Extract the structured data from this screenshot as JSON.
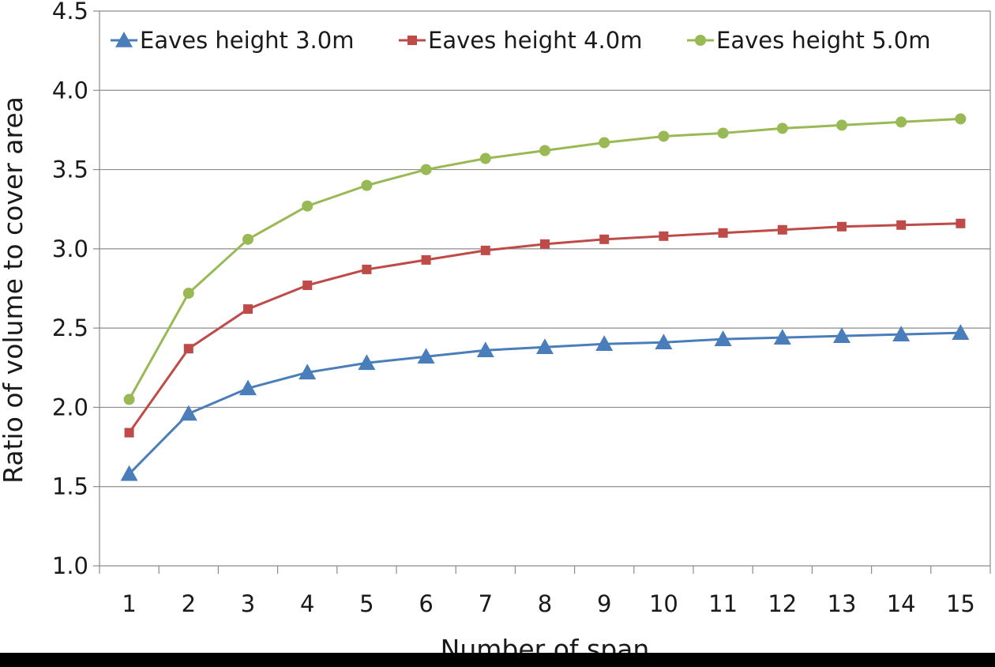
{
  "chart_data": {
    "type": "line",
    "xlabel": "Number of span",
    "ylabel": "Ratio of volume to cover area",
    "ylim": [
      1.0,
      4.5
    ],
    "yticks": [
      "1.0",
      "1.5",
      "2.0",
      "2.5",
      "3.0",
      "3.5",
      "4.0",
      "4.5"
    ],
    "categories": [
      "1",
      "2",
      "3",
      "4",
      "5",
      "6",
      "7",
      "8",
      "9",
      "10",
      "11",
      "12",
      "13",
      "14",
      "15"
    ],
    "grid": "horizontal",
    "legend_position": "top",
    "series": [
      {
        "name": "Eaves height 3.0m",
        "color": "#4a7ebb",
        "marker": "triangle",
        "values": [
          1.58,
          1.96,
          2.12,
          2.22,
          2.28,
          2.32,
          2.36,
          2.38,
          2.4,
          2.41,
          2.43,
          2.44,
          2.45,
          2.46,
          2.47
        ]
      },
      {
        "name": "Eaves height 4.0m",
        "color": "#be4b48",
        "marker": "square",
        "values": [
          1.84,
          2.37,
          2.62,
          2.77,
          2.87,
          2.93,
          2.99,
          3.03,
          3.06,
          3.08,
          3.1,
          3.12,
          3.14,
          3.15,
          3.16
        ]
      },
      {
        "name": "Eaves height 5.0m",
        "color": "#98b954",
        "marker": "circle",
        "values": [
          2.05,
          2.72,
          3.06,
          3.27,
          3.4,
          3.5,
          3.57,
          3.62,
          3.67,
          3.71,
          3.73,
          3.76,
          3.78,
          3.8,
          3.82
        ]
      }
    ]
  }
}
